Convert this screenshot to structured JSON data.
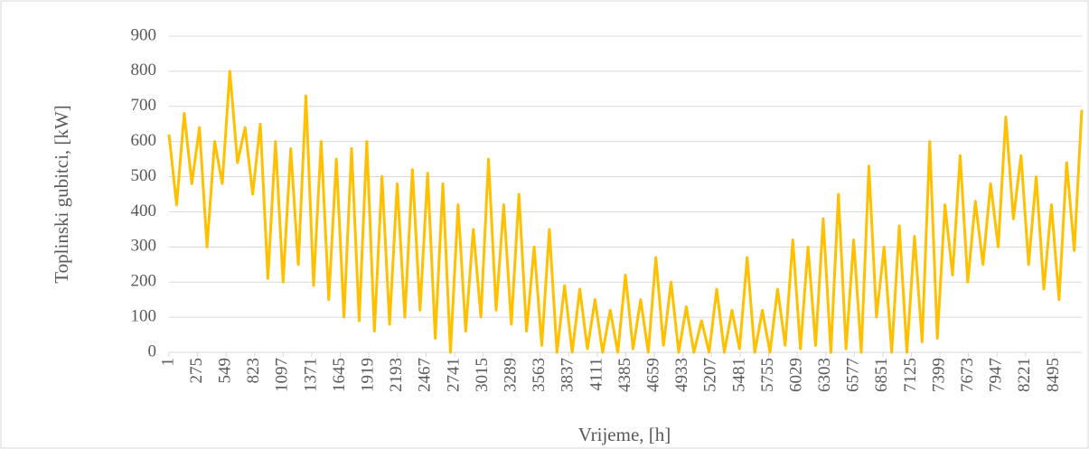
{
  "chart_data": {
    "type": "line",
    "x_label": "Vrijeme, [h]",
    "y_label": "Toplinski gubitci, [kW]",
    "x": [
      1,
      74,
      147,
      220,
      293,
      366,
      439,
      512,
      585,
      658,
      731,
      804,
      877,
      950,
      1023,
      1096,
      1169,
      1242,
      1315,
      1388,
      1461,
      1534,
      1607,
      1680,
      1753,
      1826,
      1899,
      1972,
      2045,
      2118,
      2191,
      2264,
      2337,
      2410,
      2483,
      2556,
      2629,
      2702,
      2775,
      2848,
      2921,
      2994,
      3067,
      3140,
      3213,
      3286,
      3359,
      3432,
      3505,
      3578,
      3651,
      3724,
      3797,
      3870,
      3943,
      4016,
      4089,
      4162,
      4235,
      4308,
      4381,
      4454,
      4527,
      4600,
      4673,
      4746,
      4819,
      4892,
      4965,
      5038,
      5111,
      5184,
      5257,
      5330,
      5403,
      5476,
      5549,
      5622,
      5695,
      5768,
      5841,
      5914,
      5987,
      6060,
      6133,
      6206,
      6279,
      6352,
      6425,
      6498,
      6571,
      6644,
      6717,
      6790,
      6863,
      6936,
      7009,
      7082,
      7155,
      7228,
      7301,
      7374,
      7447,
      7520,
      7593,
      7666,
      7739,
      7812,
      7885,
      7958,
      8031,
      8104,
      8177,
      8250,
      8323,
      8396,
      8469,
      8542,
      8615,
      8688,
      8760
    ],
    "series": [
      {
        "color": "#FFC000",
        "values": [
          620,
          420,
          680,
          480,
          640,
          300,
          600,
          480,
          800,
          540,
          640,
          450,
          650,
          210,
          600,
          200,
          580,
          250,
          730,
          190,
          600,
          150,
          550,
          100,
          580,
          90,
          600,
          60,
          500,
          80,
          480,
          100,
          520,
          120,
          510,
          40,
          480,
          0,
          420,
          60,
          350,
          100,
          550,
          120,
          420,
          80,
          450,
          60,
          300,
          20,
          350,
          0,
          190,
          0,
          180,
          10,
          150,
          0,
          120,
          0,
          220,
          10,
          150,
          0,
          270,
          20,
          200,
          0,
          130,
          0,
          90,
          0,
          180,
          0,
          120,
          10,
          270,
          0,
          120,
          0,
          180,
          20,
          320,
          10,
          300,
          20,
          380,
          0,
          450,
          10,
          320,
          0,
          530,
          100,
          300,
          0,
          360,
          0,
          330,
          30,
          600,
          40,
          420,
          220,
          560,
          200,
          430,
          250,
          480,
          300,
          670,
          380,
          560,
          250,
          500,
          180,
          420,
          150,
          540,
          290,
          690
        ]
      }
    ],
    "xlim": [
      1,
      8760
    ],
    "xticks": [
      1,
      275,
      549,
      823,
      1097,
      1371,
      1645,
      1919,
      2193,
      2467,
      2741,
      3015,
      3289,
      3563,
      3837,
      4111,
      4385,
      4659,
      4933,
      5207,
      5481,
      5755,
      6029,
      6303,
      6577,
      6851,
      7125,
      7399,
      7673,
      7947,
      8221,
      8495
    ],
    "ylim": [
      0,
      900
    ],
    "yticks": [
      0,
      100,
      200,
      300,
      400,
      500,
      600,
      700,
      800,
      900
    ],
    "grid": true
  }
}
